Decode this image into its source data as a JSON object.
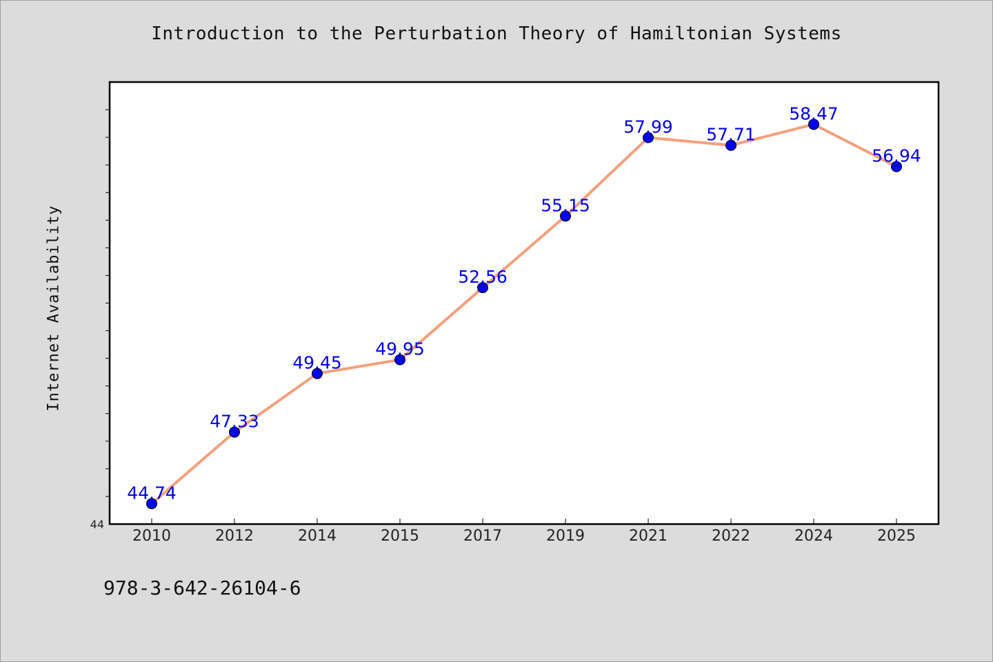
{
  "chart_data": {
    "type": "line",
    "title": "Introduction to the Perturbation Theory of Hamiltonian Systems",
    "xlabel": "",
    "ylabel": "Internet Availability",
    "categories": [
      "2010",
      "2012",
      "2014",
      "2015",
      "2017",
      "2019",
      "2021",
      "2022",
      "2024",
      "2025"
    ],
    "series": [
      {
        "values": [
          44.74,
          47.33,
          49.45,
          49.95,
          52.56,
          55.15,
          57.99,
          57.71,
          58.47,
          56.94
        ]
      }
    ],
    "ylim": [
      44,
      60
    ],
    "ytick_labels": [
      "44"
    ],
    "grid": false,
    "legend": "none",
    "colors": {
      "line": "#f4a07c",
      "marker": "#0000ee",
      "label": "#0000ee",
      "background": "#dcdcdc",
      "plot_background": "#ffffff"
    }
  },
  "footer": {
    "isbn": "978-3-642-26104-6"
  }
}
